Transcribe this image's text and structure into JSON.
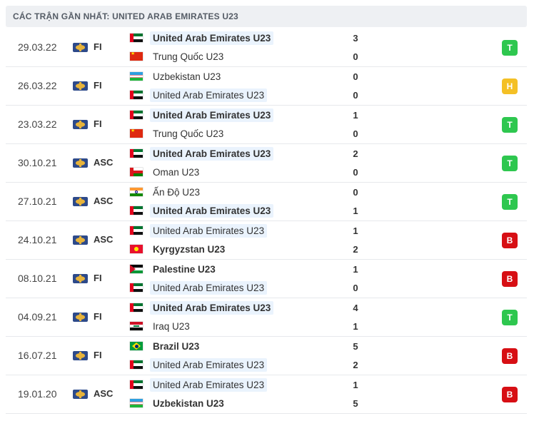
{
  "header": {
    "title": "CÁC TRẬN GẦN NHẤT: UNITED ARAB EMIRATES U23"
  },
  "colors": {
    "win": "#2ec74f",
    "draw": "#f4c025",
    "loss": "#d70f14",
    "highlight": "#eaf3fd"
  },
  "matches": [
    {
      "date": "29.03.22",
      "competition": "FI",
      "competition_icon": "trophy-icon",
      "home": {
        "name": "United Arab Emirates U23",
        "flag": "uae",
        "bold": true,
        "highlight": true
      },
      "away": {
        "name": "Trung Quốc U23",
        "flag": "china",
        "bold": false,
        "highlight": false
      },
      "home_score": "3",
      "away_score": "0",
      "result": "T"
    },
    {
      "date": "26.03.22",
      "competition": "FI",
      "competition_icon": "trophy-icon",
      "home": {
        "name": "Uzbekistan U23",
        "flag": "uzb",
        "bold": false,
        "highlight": false
      },
      "away": {
        "name": "United Arab Emirates U23",
        "flag": "uae",
        "bold": false,
        "highlight": true
      },
      "home_score": "0",
      "away_score": "0",
      "result": "H"
    },
    {
      "date": "23.03.22",
      "competition": "FI",
      "competition_icon": "trophy-icon",
      "home": {
        "name": "United Arab Emirates U23",
        "flag": "uae",
        "bold": true,
        "highlight": true
      },
      "away": {
        "name": "Trung Quốc U23",
        "flag": "china",
        "bold": false,
        "highlight": false
      },
      "home_score": "1",
      "away_score": "0",
      "result": "T"
    },
    {
      "date": "30.10.21",
      "competition": "ASC",
      "competition_icon": "trophy-icon",
      "home": {
        "name": "United Arab Emirates U23",
        "flag": "uae",
        "bold": true,
        "highlight": true
      },
      "away": {
        "name": "Oman U23",
        "flag": "oman",
        "bold": false,
        "highlight": false
      },
      "home_score": "2",
      "away_score": "0",
      "result": "T"
    },
    {
      "date": "27.10.21",
      "competition": "ASC",
      "competition_icon": "trophy-icon",
      "home": {
        "name": "Ấn Độ U23",
        "flag": "india",
        "bold": false,
        "highlight": false
      },
      "away": {
        "name": "United Arab Emirates U23",
        "flag": "uae",
        "bold": true,
        "highlight": true
      },
      "home_score": "0",
      "away_score": "1",
      "result": "T"
    },
    {
      "date": "24.10.21",
      "competition": "ASC",
      "competition_icon": "trophy-icon",
      "home": {
        "name": "United Arab Emirates U23",
        "flag": "uae",
        "bold": false,
        "highlight": true
      },
      "away": {
        "name": "Kyrgyzstan U23",
        "flag": "kyr",
        "bold": true,
        "highlight": false
      },
      "home_score": "1",
      "away_score": "2",
      "result": "B"
    },
    {
      "date": "08.10.21",
      "competition": "FI",
      "competition_icon": "trophy-icon",
      "home": {
        "name": "Palestine U23",
        "flag": "pal",
        "bold": true,
        "highlight": false
      },
      "away": {
        "name": "United Arab Emirates U23",
        "flag": "uae",
        "bold": false,
        "highlight": true
      },
      "home_score": "1",
      "away_score": "0",
      "result": "B"
    },
    {
      "date": "04.09.21",
      "competition": "FI",
      "competition_icon": "trophy-icon",
      "home": {
        "name": "United Arab Emirates U23",
        "flag": "uae",
        "bold": true,
        "highlight": true
      },
      "away": {
        "name": "Iraq U23",
        "flag": "iraq",
        "bold": false,
        "highlight": false
      },
      "home_score": "4",
      "away_score": "1",
      "result": "T"
    },
    {
      "date": "16.07.21",
      "competition": "FI",
      "competition_icon": "trophy-icon",
      "home": {
        "name": "Brazil U23",
        "flag": "brazil",
        "bold": true,
        "highlight": false
      },
      "away": {
        "name": "United Arab Emirates U23",
        "flag": "uae",
        "bold": false,
        "highlight": true
      },
      "home_score": "5",
      "away_score": "2",
      "result": "B"
    },
    {
      "date": "19.01.20",
      "competition": "ASC",
      "competition_icon": "trophy-icon",
      "home": {
        "name": "United Arab Emirates U23",
        "flag": "uae",
        "bold": false,
        "highlight": true
      },
      "away": {
        "name": "Uzbekistan U23",
        "flag": "uzb",
        "bold": true,
        "highlight": false
      },
      "home_score": "1",
      "away_score": "5",
      "result": "B"
    }
  ]
}
